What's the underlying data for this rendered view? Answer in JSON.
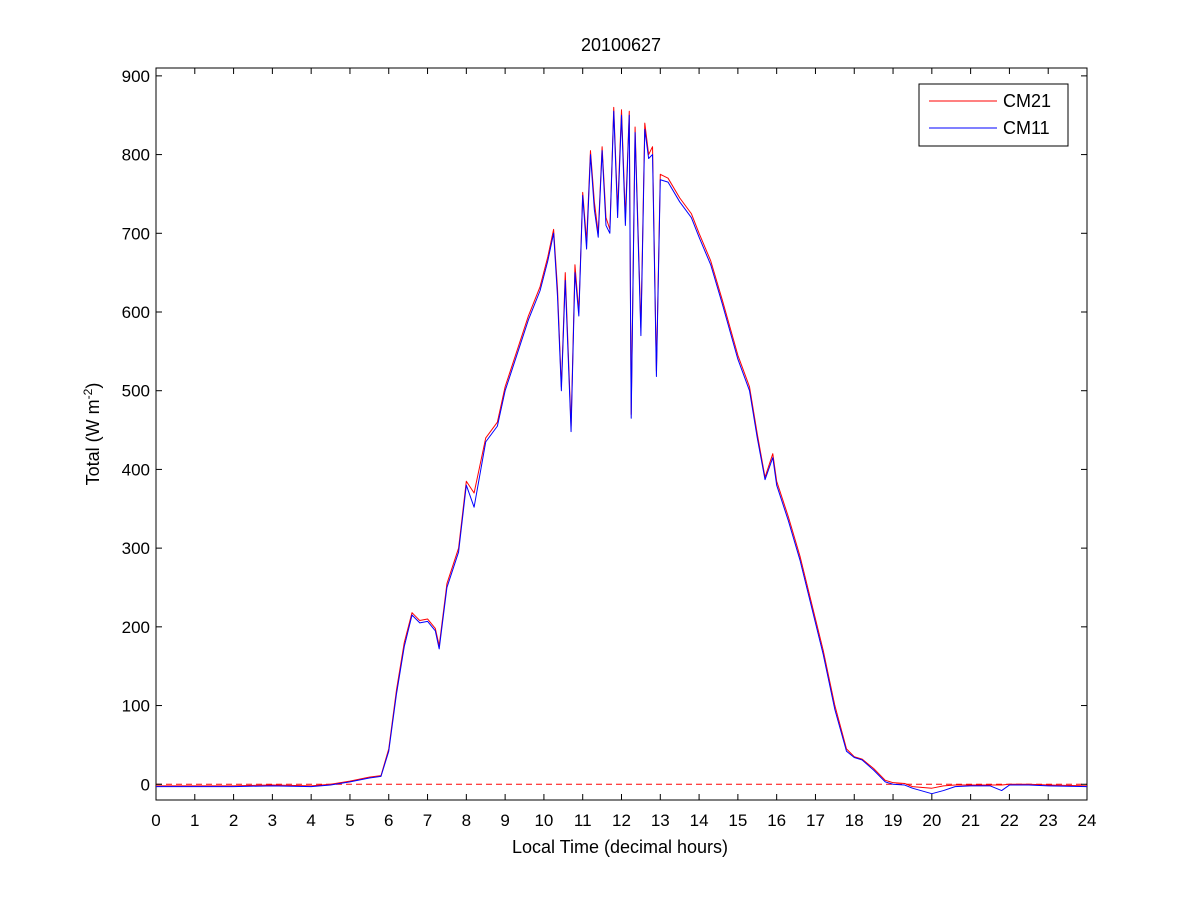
{
  "chart_data": {
    "type": "line",
    "title": "20100627",
    "xlabel": "Local Time (decimal hours)",
    "ylabel": {
      "prefix": "Total (W m",
      "sup": "-2",
      "suffix": ")"
    },
    "xlim": [
      0,
      24
    ],
    "ylim": [
      -20,
      910
    ],
    "xticks": [
      0,
      1,
      2,
      3,
      4,
      5,
      6,
      7,
      8,
      9,
      10,
      11,
      12,
      13,
      14,
      15,
      16,
      17,
      18,
      19,
      20,
      21,
      22,
      23,
      24
    ],
    "yticks": [
      0,
      100,
      200,
      300,
      400,
      500,
      600,
      700,
      800,
      900
    ],
    "grid": false,
    "legend": {
      "position": "top-right"
    },
    "reference_line": {
      "y": 0,
      "color": "#ff0000",
      "style": "dashed"
    },
    "series": [
      {
        "name": "CM21",
        "color": "#ff0000",
        "points": [
          [
            0,
            -2
          ],
          [
            1,
            -2
          ],
          [
            2,
            -2
          ],
          [
            3,
            -1
          ],
          [
            4,
            -2
          ],
          [
            4.5,
            0
          ],
          [
            5,
            4
          ],
          [
            5.5,
            9
          ],
          [
            5.8,
            11
          ],
          [
            6.0,
            45
          ],
          [
            6.2,
            120
          ],
          [
            6.4,
            180
          ],
          [
            6.6,
            218
          ],
          [
            6.8,
            208
          ],
          [
            7.0,
            210
          ],
          [
            7.2,
            198
          ],
          [
            7.3,
            176
          ],
          [
            7.5,
            255
          ],
          [
            7.8,
            300
          ],
          [
            8.0,
            385
          ],
          [
            8.2,
            370
          ],
          [
            8.5,
            440
          ],
          [
            8.8,
            460
          ],
          [
            9.0,
            505
          ],
          [
            9.3,
            550
          ],
          [
            9.6,
            595
          ],
          [
            9.9,
            632
          ],
          [
            10.1,
            670
          ],
          [
            10.25,
            705
          ],
          [
            10.35,
            630
          ],
          [
            10.45,
            505
          ],
          [
            10.55,
            650
          ],
          [
            10.7,
            455
          ],
          [
            10.8,
            660
          ],
          [
            10.9,
            600
          ],
          [
            11.0,
            752
          ],
          [
            11.1,
            690
          ],
          [
            11.2,
            805
          ],
          [
            11.3,
            740
          ],
          [
            11.4,
            700
          ],
          [
            11.5,
            810
          ],
          [
            11.6,
            720
          ],
          [
            11.7,
            705
          ],
          [
            11.8,
            860
          ],
          [
            11.9,
            730
          ],
          [
            12.0,
            857
          ],
          [
            12.1,
            720
          ],
          [
            12.2,
            855
          ],
          [
            12.25,
            470
          ],
          [
            12.35,
            835
          ],
          [
            12.5,
            580
          ],
          [
            12.6,
            840
          ],
          [
            12.7,
            800
          ],
          [
            12.8,
            810
          ],
          [
            12.9,
            525
          ],
          [
            13.0,
            775
          ],
          [
            13.2,
            770
          ],
          [
            13.5,
            745
          ],
          [
            13.8,
            725
          ],
          [
            14.0,
            700
          ],
          [
            14.3,
            665
          ],
          [
            14.6,
            615
          ],
          [
            15.0,
            545
          ],
          [
            15.3,
            505
          ],
          [
            15.5,
            445
          ],
          [
            15.7,
            390
          ],
          [
            15.9,
            420
          ],
          [
            16.0,
            385
          ],
          [
            16.3,
            340
          ],
          [
            16.6,
            290
          ],
          [
            16.9,
            230
          ],
          [
            17.2,
            170
          ],
          [
            17.5,
            100
          ],
          [
            17.8,
            45
          ],
          [
            18.0,
            35
          ],
          [
            18.2,
            32
          ],
          [
            18.5,
            20
          ],
          [
            18.8,
            5
          ],
          [
            19.0,
            2
          ],
          [
            19.3,
            1
          ],
          [
            19.5,
            -3
          ],
          [
            20.0,
            -5
          ],
          [
            20.3,
            -2
          ],
          [
            20.6,
            -1
          ],
          [
            21.0,
            -1
          ],
          [
            21.5,
            -1
          ],
          [
            21.8,
            -1
          ],
          [
            22.0,
            0
          ],
          [
            22.5,
            0
          ],
          [
            23.0,
            -1
          ],
          [
            24.0,
            -2
          ]
        ]
      },
      {
        "name": "CM11",
        "color": "#0000ff",
        "points": [
          [
            0,
            -3
          ],
          [
            1,
            -3
          ],
          [
            2,
            -3
          ],
          [
            3,
            -2
          ],
          [
            4,
            -3
          ],
          [
            4.5,
            -1
          ],
          [
            5,
            3
          ],
          [
            5.5,
            8
          ],
          [
            5.8,
            10
          ],
          [
            6.0,
            42
          ],
          [
            6.2,
            115
          ],
          [
            6.4,
            175
          ],
          [
            6.6,
            215
          ],
          [
            6.8,
            205
          ],
          [
            7.0,
            207
          ],
          [
            7.2,
            195
          ],
          [
            7.3,
            172
          ],
          [
            7.5,
            250
          ],
          [
            7.8,
            295
          ],
          [
            8.0,
            380
          ],
          [
            8.2,
            352
          ],
          [
            8.5,
            435
          ],
          [
            8.8,
            455
          ],
          [
            9.0,
            500
          ],
          [
            9.3,
            545
          ],
          [
            9.6,
            590
          ],
          [
            9.9,
            627
          ],
          [
            10.1,
            665
          ],
          [
            10.25,
            700
          ],
          [
            10.35,
            620
          ],
          [
            10.45,
            500
          ],
          [
            10.55,
            640
          ],
          [
            10.7,
            448
          ],
          [
            10.8,
            650
          ],
          [
            10.9,
            595
          ],
          [
            11.0,
            748
          ],
          [
            11.1,
            680
          ],
          [
            11.2,
            800
          ],
          [
            11.3,
            730
          ],
          [
            11.4,
            695
          ],
          [
            11.5,
            805
          ],
          [
            11.6,
            710
          ],
          [
            11.7,
            700
          ],
          [
            11.8,
            855
          ],
          [
            11.9,
            720
          ],
          [
            12.0,
            850
          ],
          [
            12.1,
            710
          ],
          [
            12.2,
            850
          ],
          [
            12.25,
            465
          ],
          [
            12.35,
            828
          ],
          [
            12.5,
            570
          ],
          [
            12.6,
            832
          ],
          [
            12.7,
            795
          ],
          [
            12.8,
            800
          ],
          [
            12.9,
            518
          ],
          [
            13.0,
            768
          ],
          [
            13.2,
            765
          ],
          [
            13.5,
            740
          ],
          [
            13.8,
            720
          ],
          [
            14.0,
            695
          ],
          [
            14.3,
            660
          ],
          [
            14.6,
            610
          ],
          [
            15.0,
            540
          ],
          [
            15.3,
            500
          ],
          [
            15.5,
            440
          ],
          [
            15.7,
            387
          ],
          [
            15.9,
            415
          ],
          [
            16.0,
            380
          ],
          [
            16.3,
            335
          ],
          [
            16.6,
            285
          ],
          [
            16.9,
            225
          ],
          [
            17.2,
            165
          ],
          [
            17.5,
            95
          ],
          [
            17.8,
            42
          ],
          [
            18.0,
            34
          ],
          [
            18.2,
            31
          ],
          [
            18.5,
            18
          ],
          [
            18.8,
            3
          ],
          [
            19.0,
            0
          ],
          [
            19.3,
            -1
          ],
          [
            19.5,
            -5
          ],
          [
            20.0,
            -12
          ],
          [
            20.3,
            -8
          ],
          [
            20.6,
            -3
          ],
          [
            21.0,
            -2
          ],
          [
            21.5,
            -2
          ],
          [
            21.8,
            -8
          ],
          [
            22.0,
            -1
          ],
          [
            22.5,
            -1
          ],
          [
            23.0,
            -2
          ],
          [
            24.0,
            -3
          ]
        ]
      }
    ]
  }
}
